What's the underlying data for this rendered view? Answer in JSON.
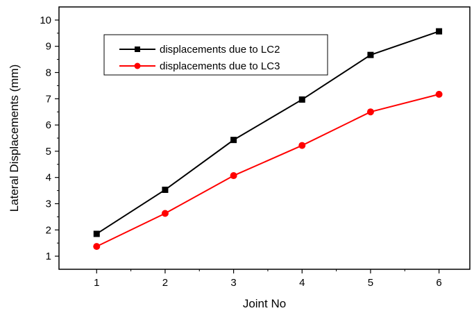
{
  "chart_data": {
    "type": "line",
    "title": "",
    "xlabel": "Joint No",
    "ylabel": "Lateral Displacements (mm)",
    "x": [
      1,
      2,
      3,
      4,
      5,
      6
    ],
    "xlim": [
      0.45,
      6.45
    ],
    "ylim": [
      0.5,
      10.5
    ],
    "xticks": [
      "1",
      "2",
      "3",
      "4",
      "5",
      "6"
    ],
    "yticks": [
      "1",
      "2",
      "3",
      "4",
      "5",
      "6",
      "7",
      "8",
      "9",
      "10"
    ],
    "grid": false,
    "legend_position": "top-left",
    "series": [
      {
        "name": "displacements due to LC2",
        "values": [
          1.85,
          3.53,
          5.43,
          6.97,
          8.67,
          9.57
        ],
        "color": "#000000",
        "marker": "square"
      },
      {
        "name": "displacements due to LC3",
        "values": [
          1.37,
          2.63,
          4.07,
          5.22,
          6.5,
          7.17
        ],
        "color": "#ff0000",
        "marker": "circle"
      }
    ]
  }
}
